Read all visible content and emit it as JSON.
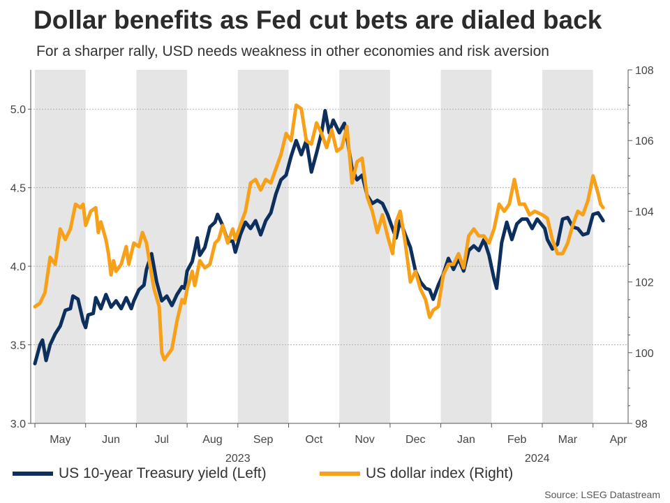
{
  "title": "Dollar benefits as Fed cut bets are dialed back",
  "subtitle": "For a sharper rally, USD needs weakness in other economies and risk aversion",
  "source": "Source: LSEG Datastream",
  "colors": {
    "yield": "#0d2f5e",
    "dollar": "#f7a11a",
    "shade": "#e5e5e5",
    "grid": "#b0b0b0",
    "axis": "#555555"
  },
  "chart_data": {
    "type": "line",
    "x_range_months": [
      0,
      11.67
    ],
    "months": [
      {
        "label": "May",
        "t": 0.5
      },
      {
        "label": "Jun",
        "t": 1.5
      },
      {
        "label": "Jul",
        "t": 2.5
      },
      {
        "label": "Aug",
        "t": 3.5
      },
      {
        "label": "Sep",
        "t": 4.5
      },
      {
        "label": "Oct",
        "t": 5.5
      },
      {
        "label": "Nov",
        "t": 6.5
      },
      {
        "label": "Dec",
        "t": 7.5
      },
      {
        "label": "Jan",
        "t": 8.5
      },
      {
        "label": "Feb",
        "t": 9.5
      },
      {
        "label": "Mar",
        "t": 10.5
      },
      {
        "label": "Apr",
        "t": 11.5
      }
    ],
    "shaded_months": [
      [
        0,
        1
      ],
      [
        2,
        3
      ],
      [
        4,
        5
      ],
      [
        6,
        7
      ],
      [
        8,
        9
      ],
      [
        10,
        11
      ]
    ],
    "years": [
      {
        "label": "2023",
        "t": 4.0
      },
      {
        "label": "2024",
        "t": 9.9
      }
    ],
    "left_axis": {
      "min": 3.0,
      "max": 5.25,
      "ticks": [
        3.0,
        3.5,
        4.0,
        4.5,
        5.0
      ],
      "tick_labels": [
        "3.0",
        "3.5",
        "4.0",
        "4.5",
        "5.0"
      ]
    },
    "right_axis": {
      "min": 98,
      "max": 108,
      "ticks": [
        98,
        100,
        102,
        104,
        106,
        108
      ],
      "tick_labels": [
        "98",
        "100",
        "102",
        "104",
        "106",
        "108"
      ]
    },
    "series": [
      {
        "name": "US 10-year Treasury yield (Left)",
        "axis": "left",
        "color_key": "yield",
        "points": [
          [
            0.0,
            3.38
          ],
          [
            0.1,
            3.5
          ],
          [
            0.15,
            3.53
          ],
          [
            0.22,
            3.4
          ],
          [
            0.3,
            3.5
          ],
          [
            0.4,
            3.57
          ],
          [
            0.5,
            3.62
          ],
          [
            0.6,
            3.72
          ],
          [
            0.7,
            3.73
          ],
          [
            0.75,
            3.81
          ],
          [
            0.85,
            3.79
          ],
          [
            0.95,
            3.65
          ],
          [
            1.0,
            3.61
          ],
          [
            1.05,
            3.69
          ],
          [
            1.15,
            3.7
          ],
          [
            1.2,
            3.8
          ],
          [
            1.3,
            3.73
          ],
          [
            1.4,
            3.82
          ],
          [
            1.5,
            3.74
          ],
          [
            1.6,
            3.78
          ],
          [
            1.7,
            3.73
          ],
          [
            1.8,
            3.8
          ],
          [
            1.9,
            3.73
          ],
          [
            1.95,
            3.78
          ],
          [
            2.05,
            3.85
          ],
          [
            2.15,
            3.88
          ],
          [
            2.2,
            3.98
          ],
          [
            2.3,
            4.08
          ],
          [
            2.4,
            3.9
          ],
          [
            2.5,
            3.78
          ],
          [
            2.6,
            3.81
          ],
          [
            2.7,
            3.75
          ],
          [
            2.8,
            3.82
          ],
          [
            2.9,
            3.87
          ],
          [
            2.95,
            3.86
          ],
          [
            3.0,
            3.97
          ],
          [
            3.1,
            4.03
          ],
          [
            3.15,
            4.1
          ],
          [
            3.2,
            4.18
          ],
          [
            3.25,
            4.07
          ],
          [
            3.35,
            4.12
          ],
          [
            3.45,
            4.25
          ],
          [
            3.55,
            4.28
          ],
          [
            3.6,
            4.33
          ],
          [
            3.7,
            4.26
          ],
          [
            3.8,
            4.16
          ],
          [
            3.9,
            4.16
          ],
          [
            3.95,
            4.09
          ],
          [
            4.05,
            4.2
          ],
          [
            4.15,
            4.28
          ],
          [
            4.25,
            4.24
          ],
          [
            4.35,
            4.29
          ],
          [
            4.45,
            4.2
          ],
          [
            4.55,
            4.29
          ],
          [
            4.65,
            4.34
          ],
          [
            4.75,
            4.46
          ],
          [
            4.85,
            4.55
          ],
          [
            4.95,
            4.58
          ],
          [
            5.05,
            4.7
          ],
          [
            5.15,
            4.8
          ],
          [
            5.25,
            4.71
          ],
          [
            5.35,
            4.8
          ],
          [
            5.45,
            4.6
          ],
          [
            5.55,
            4.72
          ],
          [
            5.65,
            4.85
          ],
          [
            5.72,
            4.99
          ],
          [
            5.8,
            4.85
          ],
          [
            5.88,
            4.93
          ],
          [
            6.0,
            4.85
          ],
          [
            6.1,
            4.91
          ],
          [
            6.15,
            4.82
          ],
          [
            6.25,
            4.62
          ],
          [
            6.35,
            4.55
          ],
          [
            6.45,
            4.58
          ],
          [
            6.55,
            4.45
          ],
          [
            6.65,
            4.4
          ],
          [
            6.75,
            4.42
          ],
          [
            6.85,
            4.4
          ],
          [
            6.95,
            4.33
          ],
          [
            7.05,
            4.24
          ],
          [
            7.12,
            4.18
          ],
          [
            7.2,
            4.29
          ],
          [
            7.3,
            4.2
          ],
          [
            7.4,
            4.12
          ],
          [
            7.5,
            3.97
          ],
          [
            7.6,
            3.9
          ],
          [
            7.7,
            3.86
          ],
          [
            7.78,
            3.85
          ],
          [
            7.85,
            3.79
          ],
          [
            7.95,
            3.88
          ],
          [
            8.05,
            3.95
          ],
          [
            8.15,
            4.05
          ],
          [
            8.25,
            3.98
          ],
          [
            8.35,
            4.05
          ],
          [
            8.45,
            3.97
          ],
          [
            8.55,
            4.1
          ],
          [
            8.65,
            4.13
          ],
          [
            8.75,
            4.1
          ],
          [
            8.85,
            4.17
          ],
          [
            8.95,
            4.07
          ],
          [
            9.05,
            3.92
          ],
          [
            9.1,
            3.86
          ],
          [
            9.2,
            4.15
          ],
          [
            9.3,
            4.28
          ],
          [
            9.4,
            4.17
          ],
          [
            9.5,
            4.27
          ],
          [
            9.6,
            4.3
          ],
          [
            9.7,
            4.3
          ],
          [
            9.8,
            4.24
          ],
          [
            9.9,
            4.3
          ],
          [
            10.05,
            4.24
          ],
          [
            10.1,
            4.17
          ],
          [
            10.2,
            4.11
          ],
          [
            10.3,
            4.14
          ],
          [
            10.4,
            4.3
          ],
          [
            10.5,
            4.31
          ],
          [
            10.6,
            4.25
          ],
          [
            10.7,
            4.24
          ],
          [
            10.8,
            4.2
          ],
          [
            10.9,
            4.21
          ],
          [
            11.0,
            4.33
          ],
          [
            11.1,
            4.34
          ],
          [
            11.2,
            4.29
          ]
        ]
      },
      {
        "name": "US dollar index (Right)",
        "axis": "right",
        "color_key": "dollar",
        "points": [
          [
            0.0,
            101.3
          ],
          [
            0.1,
            101.4
          ],
          [
            0.2,
            101.7
          ],
          [
            0.3,
            102.7
          ],
          [
            0.4,
            102.5
          ],
          [
            0.5,
            103.5
          ],
          [
            0.6,
            103.2
          ],
          [
            0.7,
            103.5
          ],
          [
            0.8,
            104.2
          ],
          [
            0.9,
            104.1
          ],
          [
            0.95,
            104.2
          ],
          [
            1.0,
            103.6
          ],
          [
            1.1,
            104.0
          ],
          [
            1.2,
            104.1
          ],
          [
            1.25,
            103.4
          ],
          [
            1.3,
            103.7
          ],
          [
            1.4,
            103.2
          ],
          [
            1.45,
            102.8
          ],
          [
            1.5,
            102.2
          ],
          [
            1.55,
            102.6
          ],
          [
            1.6,
            102.3
          ],
          [
            1.7,
            102.5
          ],
          [
            1.8,
            103.0
          ],
          [
            1.85,
            102.5
          ],
          [
            1.95,
            103.1
          ],
          [
            2.05,
            103.0
          ],
          [
            2.12,
            103.4
          ],
          [
            2.2,
            103.1
          ],
          [
            2.3,
            102.2
          ],
          [
            2.35,
            101.8
          ],
          [
            2.45,
            101.3
          ],
          [
            2.5,
            100.0
          ],
          [
            2.55,
            99.8
          ],
          [
            2.6,
            99.9
          ],
          [
            2.7,
            100.1
          ],
          [
            2.8,
            100.9
          ],
          [
            2.9,
            101.5
          ],
          [
            2.95,
            101.4
          ],
          [
            3.0,
            101.8
          ],
          [
            3.1,
            102.3
          ],
          [
            3.15,
            101.9
          ],
          [
            3.25,
            102.6
          ],
          [
            3.35,
            102.4
          ],
          [
            3.45,
            102.5
          ],
          [
            3.55,
            103.1
          ],
          [
            3.62,
            103.2
          ],
          [
            3.7,
            103.6
          ],
          [
            3.8,
            103.1
          ],
          [
            3.9,
            103.5
          ],
          [
            3.95,
            103.2
          ],
          [
            4.05,
            103.6
          ],
          [
            4.15,
            104.0
          ],
          [
            4.25,
            104.8
          ],
          [
            4.35,
            104.9
          ],
          [
            4.45,
            104.6
          ],
          [
            4.55,
            104.9
          ],
          [
            4.65,
            104.8
          ],
          [
            4.75,
            105.2
          ],
          [
            4.85,
            105.6
          ],
          [
            4.95,
            106.2
          ],
          [
            5.05,
            106.0
          ],
          [
            5.15,
            107.0
          ],
          [
            5.25,
            106.9
          ],
          [
            5.35,
            106.0
          ],
          [
            5.45,
            105.9
          ],
          [
            5.55,
            106.5
          ],
          [
            5.65,
            106.2
          ],
          [
            5.75,
            105.8
          ],
          [
            5.85,
            106.3
          ],
          [
            5.95,
            105.7
          ],
          [
            6.05,
            105.8
          ],
          [
            6.15,
            106.4
          ],
          [
            6.25,
            104.8
          ],
          [
            6.35,
            105.4
          ],
          [
            6.45,
            105.5
          ],
          [
            6.55,
            104.4
          ],
          [
            6.65,
            104.0
          ],
          [
            6.75,
            103.4
          ],
          [
            6.85,
            103.9
          ],
          [
            6.95,
            103.3
          ],
          [
            7.05,
            102.8
          ],
          [
            7.12,
            103.7
          ],
          [
            7.2,
            104.0
          ],
          [
            7.3,
            103.1
          ],
          [
            7.4,
            102.0
          ],
          [
            7.5,
            102.3
          ],
          [
            7.6,
            101.8
          ],
          [
            7.7,
            101.5
          ],
          [
            7.78,
            101.0
          ],
          [
            7.85,
            101.2
          ],
          [
            7.95,
            101.3
          ],
          [
            8.05,
            102.2
          ],
          [
            8.15,
            102.5
          ],
          [
            8.25,
            102.5
          ],
          [
            8.35,
            102.8
          ],
          [
            8.45,
            102.4
          ],
          [
            8.55,
            103.3
          ],
          [
            8.65,
            103.5
          ],
          [
            8.75,
            103.3
          ],
          [
            8.85,
            103.3
          ],
          [
            8.95,
            103.1
          ],
          [
            9.05,
            103.5
          ],
          [
            9.15,
            104.2
          ],
          [
            9.25,
            104.0
          ],
          [
            9.35,
            104.2
          ],
          [
            9.45,
            104.9
          ],
          [
            9.55,
            104.2
          ],
          [
            9.65,
            104.2
          ],
          [
            9.75,
            103.9
          ],
          [
            9.85,
            104.0
          ],
          [
            10.0,
            103.9
          ],
          [
            10.1,
            103.8
          ],
          [
            10.2,
            103.2
          ],
          [
            10.3,
            102.8
          ],
          [
            10.4,
            102.8
          ],
          [
            10.5,
            103.1
          ],
          [
            10.6,
            103.6
          ],
          [
            10.7,
            104.0
          ],
          [
            10.8,
            103.9
          ],
          [
            10.9,
            104.3
          ],
          [
            11.0,
            105.0
          ],
          [
            11.1,
            104.5
          ],
          [
            11.15,
            104.2
          ],
          [
            11.2,
            104.1
          ]
        ]
      }
    ]
  }
}
